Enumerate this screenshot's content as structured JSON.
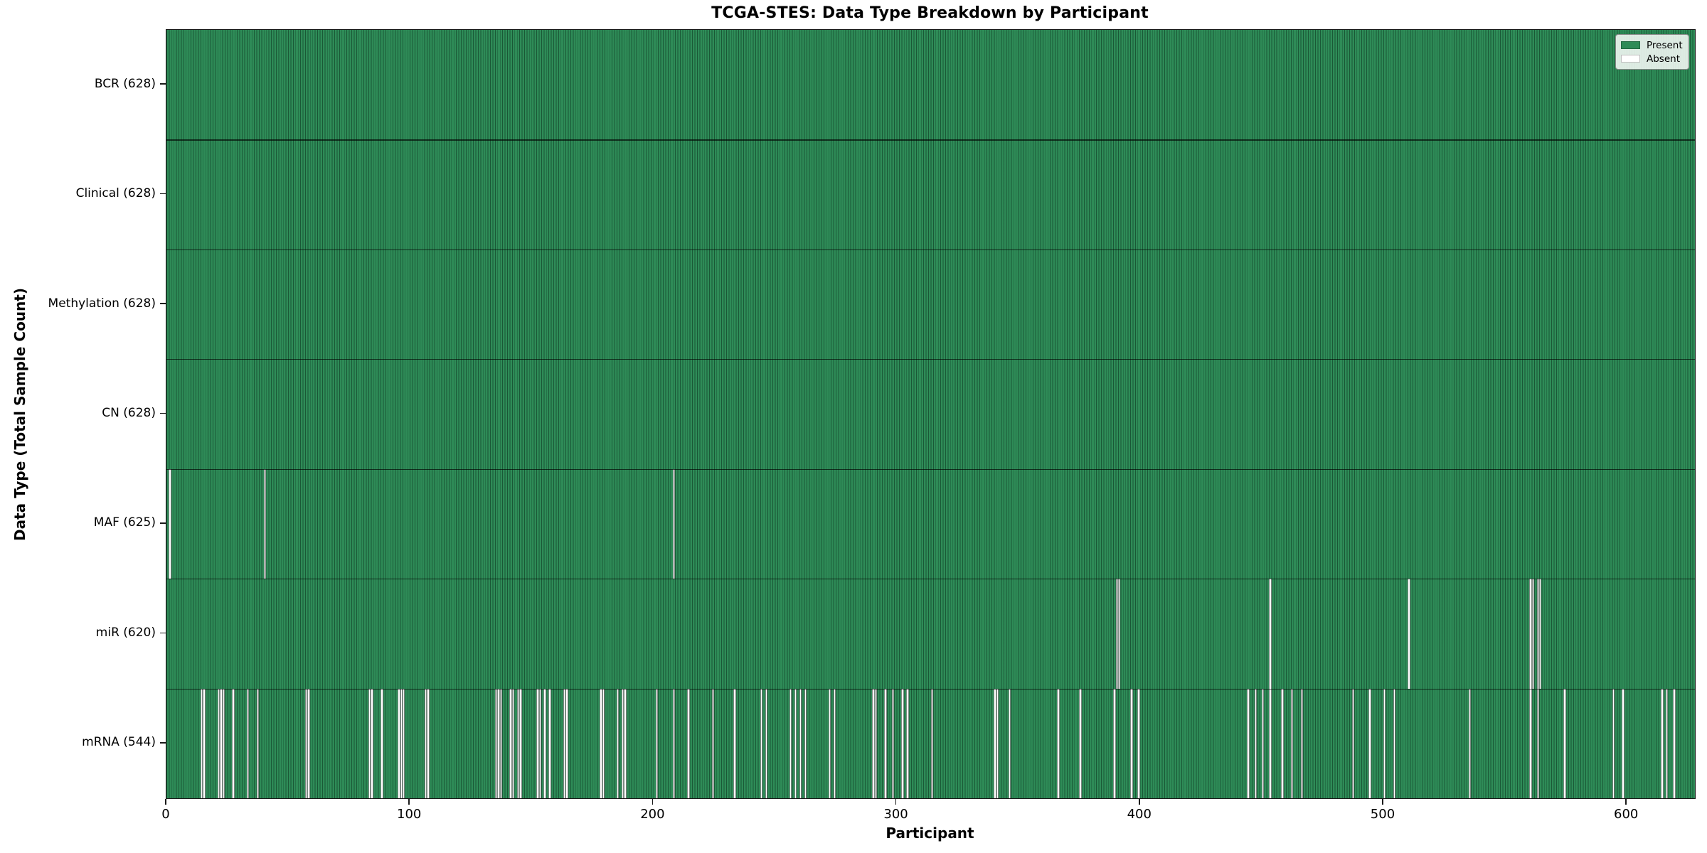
{
  "chart_data": {
    "type": "heatmap",
    "title": "TCGA-STES: Data Type Breakdown by Participant",
    "xlabel": "Participant",
    "ylabel": "Data Type (Total Sample Count)",
    "n_participants": 628,
    "x_ticks": [
      0,
      100,
      200,
      300,
      400,
      500,
      600
    ],
    "legend": {
      "position": "upper right",
      "entries": [
        {
          "label": "Present",
          "color": "#2e8b57"
        },
        {
          "label": "Absent",
          "color": "#ffffff"
        }
      ]
    },
    "colors": {
      "present": "#2e8b57",
      "absent": "#ffffff",
      "cell_edge": "#1a4e33",
      "row_separator": "#1a1a1a",
      "spine": "#1a1a1a"
    },
    "rows": [
      {
        "label": "BCR (628)",
        "data_type": "BCR",
        "count": 628,
        "absent": []
      },
      {
        "label": "Clinical (628)",
        "data_type": "Clinical",
        "count": 628,
        "absent": []
      },
      {
        "label": "Methylation (628)",
        "data_type": "Methylation",
        "count": 628,
        "absent": []
      },
      {
        "label": "CN (628)",
        "data_type": "CN",
        "count": 628,
        "absent": []
      },
      {
        "label": "MAF (625)",
        "data_type": "MAF",
        "count": 625,
        "absent": [
          1,
          40,
          208
        ]
      },
      {
        "label": "miR (620)",
        "data_type": "miR",
        "count": 620,
        "absent": [
          390,
          391,
          453,
          510,
          560,
          561,
          563,
          564
        ]
      },
      {
        "label": "mRNA (544)",
        "data_type": "mRNA",
        "count": 544,
        "absent": [
          14,
          15,
          21,
          22,
          23,
          27,
          33,
          37,
          57,
          58,
          83,
          84,
          88,
          95,
          96,
          97,
          106,
          107,
          135,
          136,
          137,
          141,
          142,
          144,
          145,
          152,
          153,
          155,
          157,
          163,
          164,
          178,
          179,
          185,
          187,
          188,
          201,
          208,
          214,
          224,
          233,
          244,
          246,
          256,
          258,
          260,
          262,
          272,
          274,
          290,
          291,
          295,
          298,
          302,
          304,
          314,
          340,
          341,
          346,
          366,
          375,
          389,
          396,
          399,
          444,
          447,
          450,
          453,
          458,
          462,
          466,
          487,
          494,
          500,
          504,
          535,
          560,
          563,
          574,
          594,
          598,
          614,
          616,
          619
        ]
      }
    ]
  }
}
